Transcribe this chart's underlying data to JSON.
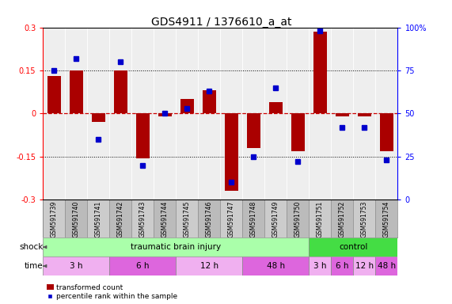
{
  "title": "GDS4911 / 1376610_a_at",
  "samples": [
    "GSM591739",
    "GSM591740",
    "GSM591741",
    "GSM591742",
    "GSM591743",
    "GSM591744",
    "GSM591745",
    "GSM591746",
    "GSM591747",
    "GSM591748",
    "GSM591749",
    "GSM591750",
    "GSM591751",
    "GSM591752",
    "GSM591753",
    "GSM591754"
  ],
  "bar_values": [
    0.13,
    0.15,
    -0.03,
    0.15,
    -0.155,
    -0.01,
    0.05,
    0.08,
    -0.27,
    -0.12,
    0.04,
    -0.13,
    0.285,
    -0.01,
    -0.01,
    -0.13
  ],
  "dot_values": [
    75,
    82,
    35,
    80,
    20,
    50,
    53,
    63,
    10,
    25,
    65,
    22,
    98,
    42,
    42,
    23
  ],
  "ylim": [
    -0.3,
    0.3
  ],
  "y2lim": [
    0,
    100
  ],
  "yticks": [
    -0.3,
    -0.15,
    0,
    0.15,
    0.3
  ],
  "y2ticks": [
    0,
    25,
    50,
    75,
    100
  ],
  "bar_color": "#aa0000",
  "dot_color": "#0000cc",
  "zero_line_color": "#cc0000",
  "plot_bg": "#eeeeee",
  "shock_label": "shock",
  "time_label": "time",
  "shock_groups": [
    {
      "label": "traumatic brain injury",
      "start": 0,
      "end": 12,
      "color": "#aaffaa"
    },
    {
      "label": "control",
      "start": 12,
      "end": 16,
      "color": "#44dd44"
    }
  ],
  "time_groups": [
    {
      "label": "3 h",
      "start": 0,
      "end": 3,
      "color": "#f0b0f0"
    },
    {
      "label": "6 h",
      "start": 3,
      "end": 6,
      "color": "#dd66dd"
    },
    {
      "label": "12 h",
      "start": 6,
      "end": 9,
      "color": "#f0b0f0"
    },
    {
      "label": "48 h",
      "start": 9,
      "end": 12,
      "color": "#dd66dd"
    },
    {
      "label": "3 h",
      "start": 12,
      "end": 13,
      "color": "#f0b0f0"
    },
    {
      "label": "6 h",
      "start": 13,
      "end": 14,
      "color": "#dd66dd"
    },
    {
      "label": "12 h",
      "start": 14,
      "end": 15,
      "color": "#f0b0f0"
    },
    {
      "label": "48 h",
      "start": 15,
      "end": 16,
      "color": "#dd66dd"
    }
  ],
  "legend_bar_label": "transformed count",
  "legend_dot_label": "percentile rank within the sample",
  "title_fontsize": 10,
  "tick_fontsize": 7,
  "label_fontsize": 7.5,
  "annotation_fontsize": 7.5,
  "sample_fontsize": 5.5
}
